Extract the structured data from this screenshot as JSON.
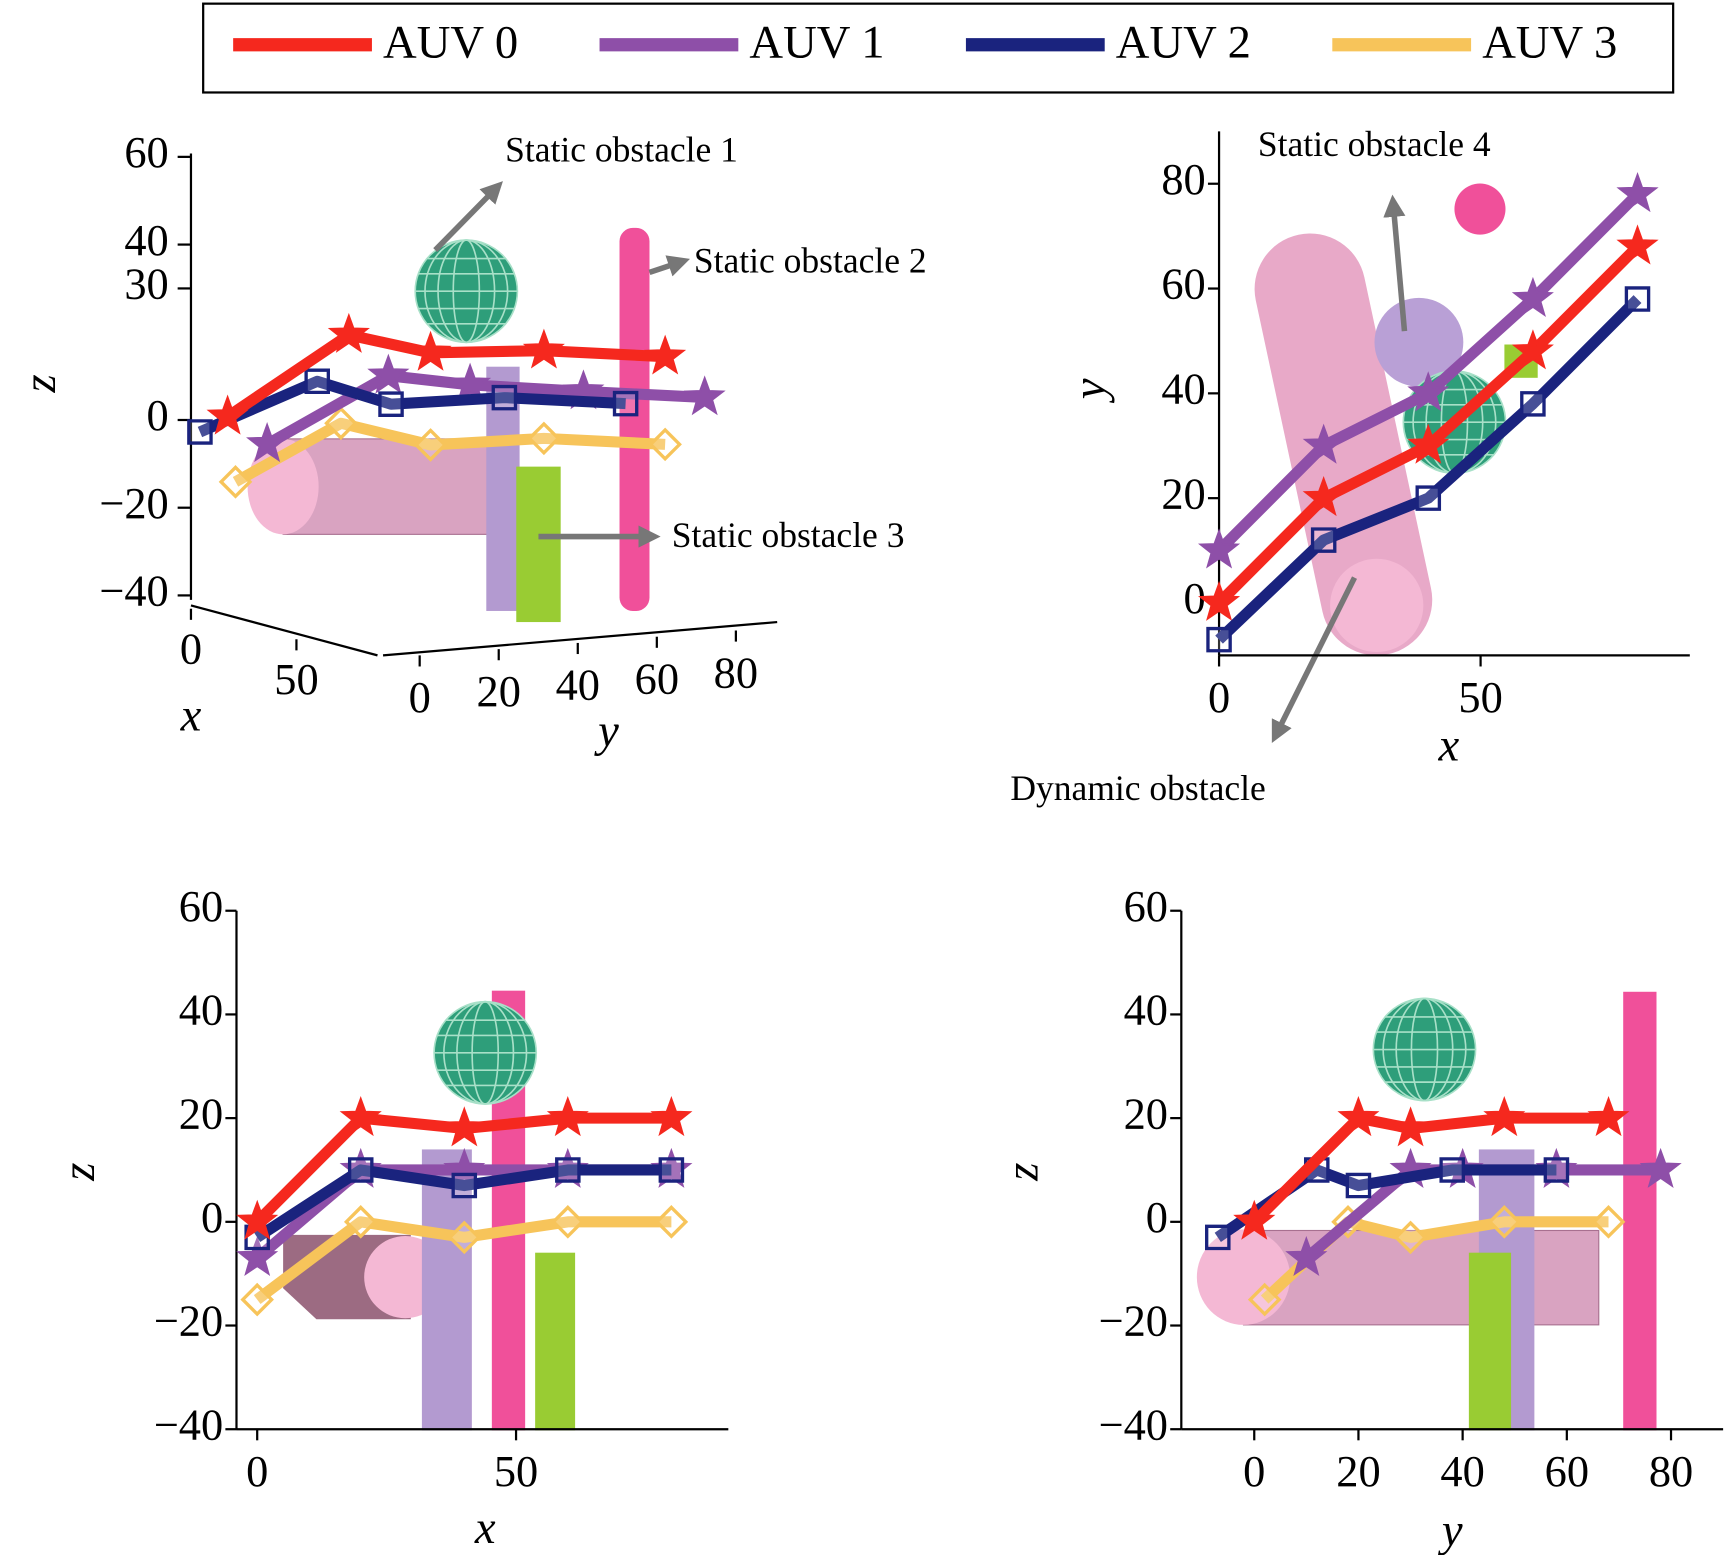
{
  "chart_data": [
    {
      "type": "line3d",
      "xlabel": "x",
      "ylabel": "y",
      "zlabel": "z",
      "xticks": [
        0,
        50
      ],
      "yticks": [
        0,
        20,
        40,
        60,
        80
      ],
      "zticks": [
        {
          "value": -40,
          "label": "−40"
        },
        {
          "value": -20,
          "label": "−20"
        },
        0,
        30,
        40,
        60
      ],
      "annotations": [
        "Static obstacle 1",
        "Static obstacle 2",
        "Static obstacle 3"
      ],
      "series": [
        {
          "name": "AUV 0",
          "color": "#f5281e",
          "x": [
            0,
            20,
            40,
            60,
            80
          ],
          "y": [
            0,
            20,
            30,
            48,
            68
          ],
          "z": [
            0,
            20,
            18,
            20,
            20
          ]
        },
        {
          "name": "AUV 1",
          "color": "#8e4fa8",
          "x": [
            0,
            20,
            40,
            60,
            80
          ],
          "y": [
            10,
            30,
            40,
            58,
            78
          ],
          "z": [
            -7,
            10,
            10,
            10,
            10
          ]
        },
        {
          "name": "AUV 2",
          "color": "#1a237e",
          "x": [
            0,
            20,
            40,
            60,
            80
          ],
          "y": [
            -7,
            12,
            20,
            38,
            58
          ],
          "z": [
            -3,
            10,
            7,
            10,
            10
          ]
        },
        {
          "name": "AUV 3",
          "color": "#f7c45a",
          "x": [
            0,
            20,
            40,
            60,
            80
          ],
          "y": [
            2,
            18,
            30,
            48,
            68
          ],
          "z": [
            -15,
            0,
            -3,
            0,
            0
          ]
        }
      ]
    },
    {
      "type": "line",
      "xlabel": "x",
      "ylabel": "y",
      "xlim": [
        0,
        90
      ],
      "ylim": [
        -10,
        90
      ],
      "xticks": [
        0,
        50
      ],
      "yticks": [
        0,
        20,
        40,
        60,
        80
      ],
      "annotations": [
        "Static obstacle 4",
        "Dynamic obstacle"
      ],
      "series": [
        {
          "name": "AUV 0",
          "color": "#f5281e",
          "x": [
            0,
            20,
            40,
            60,
            80
          ],
          "values": [
            0,
            20,
            30,
            48,
            68
          ]
        },
        {
          "name": "AUV 1",
          "color": "#8e4fa8",
          "x": [
            0,
            20,
            40,
            60,
            80
          ],
          "values": [
            10,
            30,
            40,
            58,
            78
          ]
        },
        {
          "name": "AUV 2",
          "color": "#1a237e",
          "x": [
            0,
            20,
            40,
            60,
            80
          ],
          "values": [
            -7,
            12,
            20,
            38,
            58
          ]
        }
      ]
    },
    {
      "type": "line",
      "xlabel": "x",
      "ylabel": "z",
      "xlim": [
        -4,
        91
      ],
      "ylim": [
        -40,
        60
      ],
      "xticks": [
        0,
        50
      ],
      "yticks": [
        {
          "value": -40,
          "label": "−40"
        },
        {
          "value": -20,
          "label": "−20"
        },
        0,
        20,
        40,
        60
      ],
      "series": [
        {
          "name": "AUV 1",
          "color": "#8e4fa8",
          "x": [
            0,
            20,
            40,
            60,
            80
          ],
          "values": [
            -7,
            10,
            10,
            10,
            10
          ]
        },
        {
          "name": "AUV 3",
          "color": "#f7c45a",
          "x": [
            0,
            20,
            40,
            60,
            80
          ],
          "values": [
            -15,
            0,
            -3,
            0,
            0
          ]
        },
        {
          "name": "AUV 2",
          "color": "#1a237e",
          "x": [
            0,
            20,
            40,
            60,
            80
          ],
          "values": [
            -3,
            10,
            7,
            10,
            10
          ]
        },
        {
          "name": "AUV 0",
          "color": "#f5281e",
          "x": [
            0,
            20,
            40,
            60,
            80
          ],
          "values": [
            0,
            20,
            18,
            20,
            20
          ]
        }
      ]
    },
    {
      "type": "line",
      "xlabel": "y",
      "ylabel": "z",
      "xlim": [
        -14,
        90
      ],
      "ylim": [
        -40,
        60
      ],
      "xticks": [
        0,
        20,
        40,
        60,
        80
      ],
      "yticks": [
        {
          "value": -40,
          "label": "−40"
        },
        {
          "value": -20,
          "label": "−20"
        },
        0,
        20,
        40,
        60
      ],
      "series": [
        {
          "name": "AUV 3",
          "color": "#f7c45a",
          "x": [
            2,
            18,
            30,
            48,
            68
          ],
          "values": [
            -15,
            0,
            -3,
            0,
            0
          ]
        },
        {
          "name": "AUV 1",
          "color": "#8e4fa8",
          "x": [
            10,
            30,
            40,
            58,
            78
          ],
          "values": [
            -7,
            10,
            10,
            10,
            10
          ]
        },
        {
          "name": "AUV 2",
          "color": "#1a237e",
          "x": [
            -7,
            12,
            20,
            38,
            58
          ],
          "values": [
            -3,
            10,
            7,
            10,
            10
          ]
        },
        {
          "name": "AUV 0",
          "color": "#f5281e",
          "x": [
            0,
            20,
            30,
            48,
            68
          ],
          "values": [
            0,
            20,
            18,
            20,
            20
          ]
        }
      ]
    }
  ]
}
